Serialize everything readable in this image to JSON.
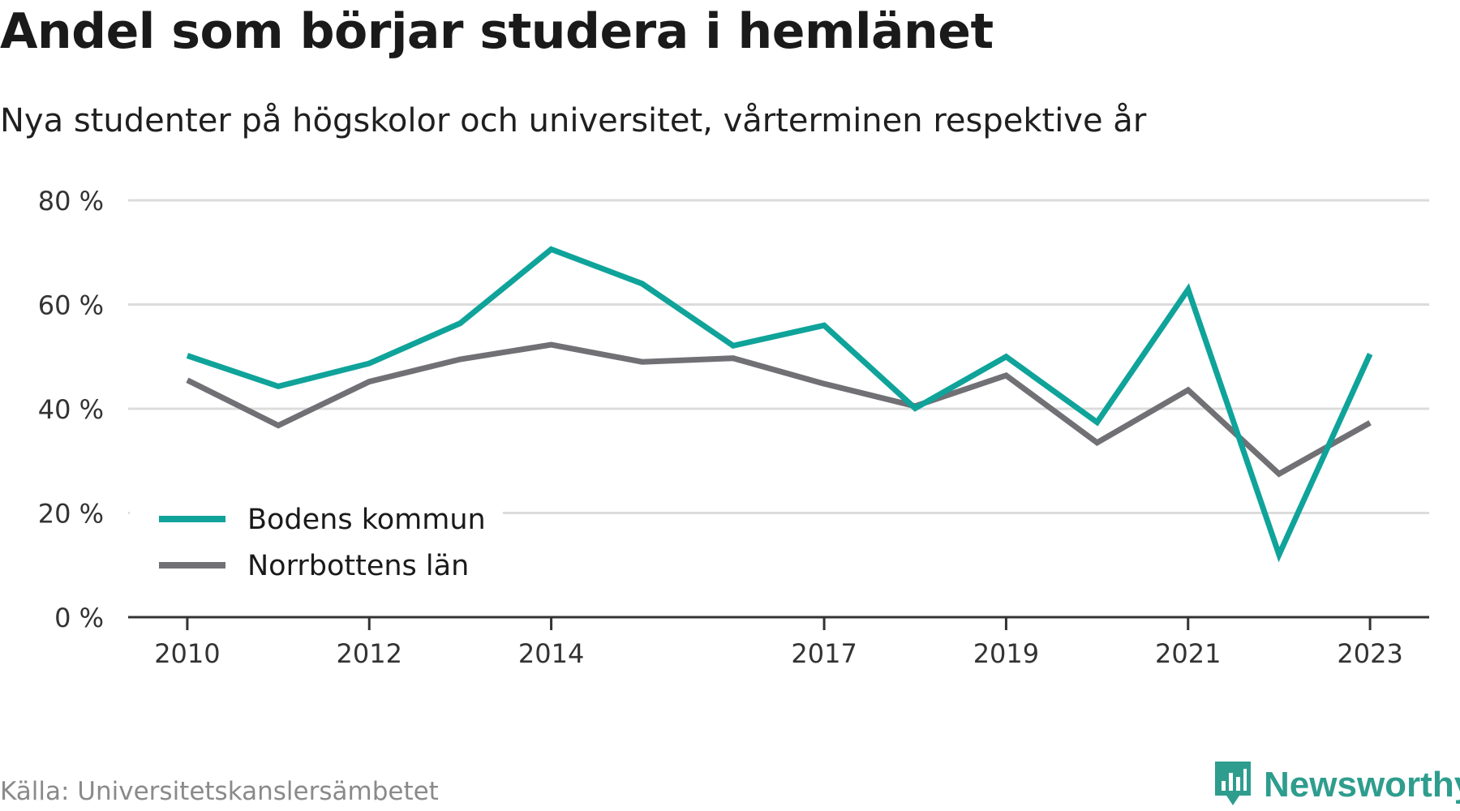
{
  "header": {
    "title": "Andel som börjar studera i hemlänet",
    "subtitle": "Nya studenter på högskolor och universitet, vårterminen respektive år"
  },
  "footer": {
    "source": "Källa: Universitetskanslersämbetet",
    "brand": "Newsworthy",
    "brand_icon": "newsworthy-logo-icon"
  },
  "colors": {
    "series_1": "#0fa39a",
    "series_2": "#707075",
    "gridline": "#dcdcdc",
    "axis": "#333333",
    "brand": "#2e9d8e"
  },
  "chart_data": {
    "type": "line",
    "title": "Andel som börjar studera i hemlänet",
    "subtitle": "Nya studenter på högskolor och universitet, vårterminen respektive år",
    "x": [
      2010,
      2011,
      2012,
      2013,
      2014,
      2015,
      2016,
      2017,
      2018,
      2019,
      2020,
      2021,
      2022,
      2023
    ],
    "x_tick_values": [
      2010,
      2012,
      2014,
      2017,
      2019,
      2021,
      2023
    ],
    "x_tick_labels": [
      "2010",
      "2012",
      "2014",
      "2017",
      "2019",
      "2021",
      "2023"
    ],
    "y_tick_values": [
      0,
      20,
      40,
      60,
      80
    ],
    "y_tick_labels": [
      "0 %",
      "20 %",
      "40 %",
      "60 %",
      "80 %"
    ],
    "ylim": [
      0,
      80
    ],
    "xlim": [
      2009.35,
      2023.65
    ],
    "grid": true,
    "legend_position": "bottom-left",
    "series": [
      {
        "name": "Bodens kommun",
        "values": [
          50.2,
          44.3,
          48.7,
          56.4,
          70.6,
          64.0,
          52.1,
          56.0,
          40.1,
          50.0,
          37.4,
          62.9,
          12.0,
          50.5
        ]
      },
      {
        "name": "Norrbottens län",
        "values": [
          45.5,
          36.8,
          45.2,
          49.5,
          52.3,
          49.0,
          49.7,
          44.8,
          40.5,
          46.4,
          33.5,
          43.6,
          27.5,
          37.3
        ]
      }
    ]
  }
}
